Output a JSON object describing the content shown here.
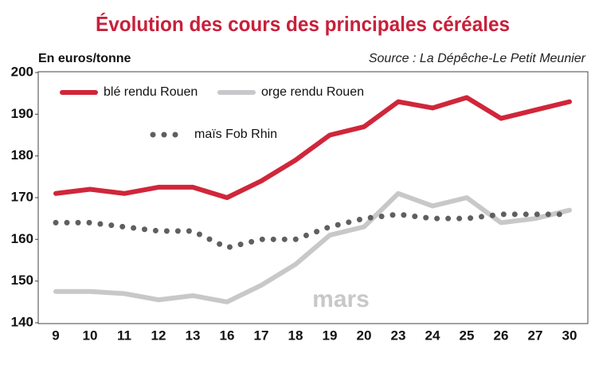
{
  "chart_data": {
    "type": "line",
    "title": "Évolution des cours des principales céréales",
    "y_axis_label": "En euros/tonne",
    "source": "Source : La Dépêche-Le Petit Meunier",
    "annotation": "mars",
    "categories": [
      "9",
      "10",
      "11",
      "12",
      "13",
      "16",
      "17",
      "18",
      "19",
      "20",
      "23",
      "24",
      "25",
      "26",
      "27",
      "30"
    ],
    "series": [
      {
        "name": "blé rendu Rouen",
        "color": "#d0263a",
        "style": "solid",
        "values": [
          171,
          172,
          171,
          172.5,
          172.5,
          170,
          174,
          179,
          185,
          187,
          193,
          191.5,
          194,
          189,
          191,
          193
        ]
      },
      {
        "name": "orge rendu Rouen",
        "color": "#c8c8ca",
        "style": "solid",
        "values": [
          147.5,
          147.5,
          147,
          145.5,
          146.5,
          145,
          149,
          154,
          161,
          163,
          171,
          168,
          170,
          164,
          165,
          167
        ]
      },
      {
        "name": "maïs Fob Rhin",
        "color": "#5f5f5f",
        "style": "dotted",
        "values": [
          164,
          164,
          163,
          162,
          162,
          158,
          160,
          160,
          163,
          165,
          166,
          165,
          165,
          166,
          166,
          166
        ]
      }
    ],
    "ylim": [
      140,
      200
    ],
    "yticks": [
      140,
      150,
      160,
      170,
      180,
      190,
      200
    ],
    "grid": false
  }
}
